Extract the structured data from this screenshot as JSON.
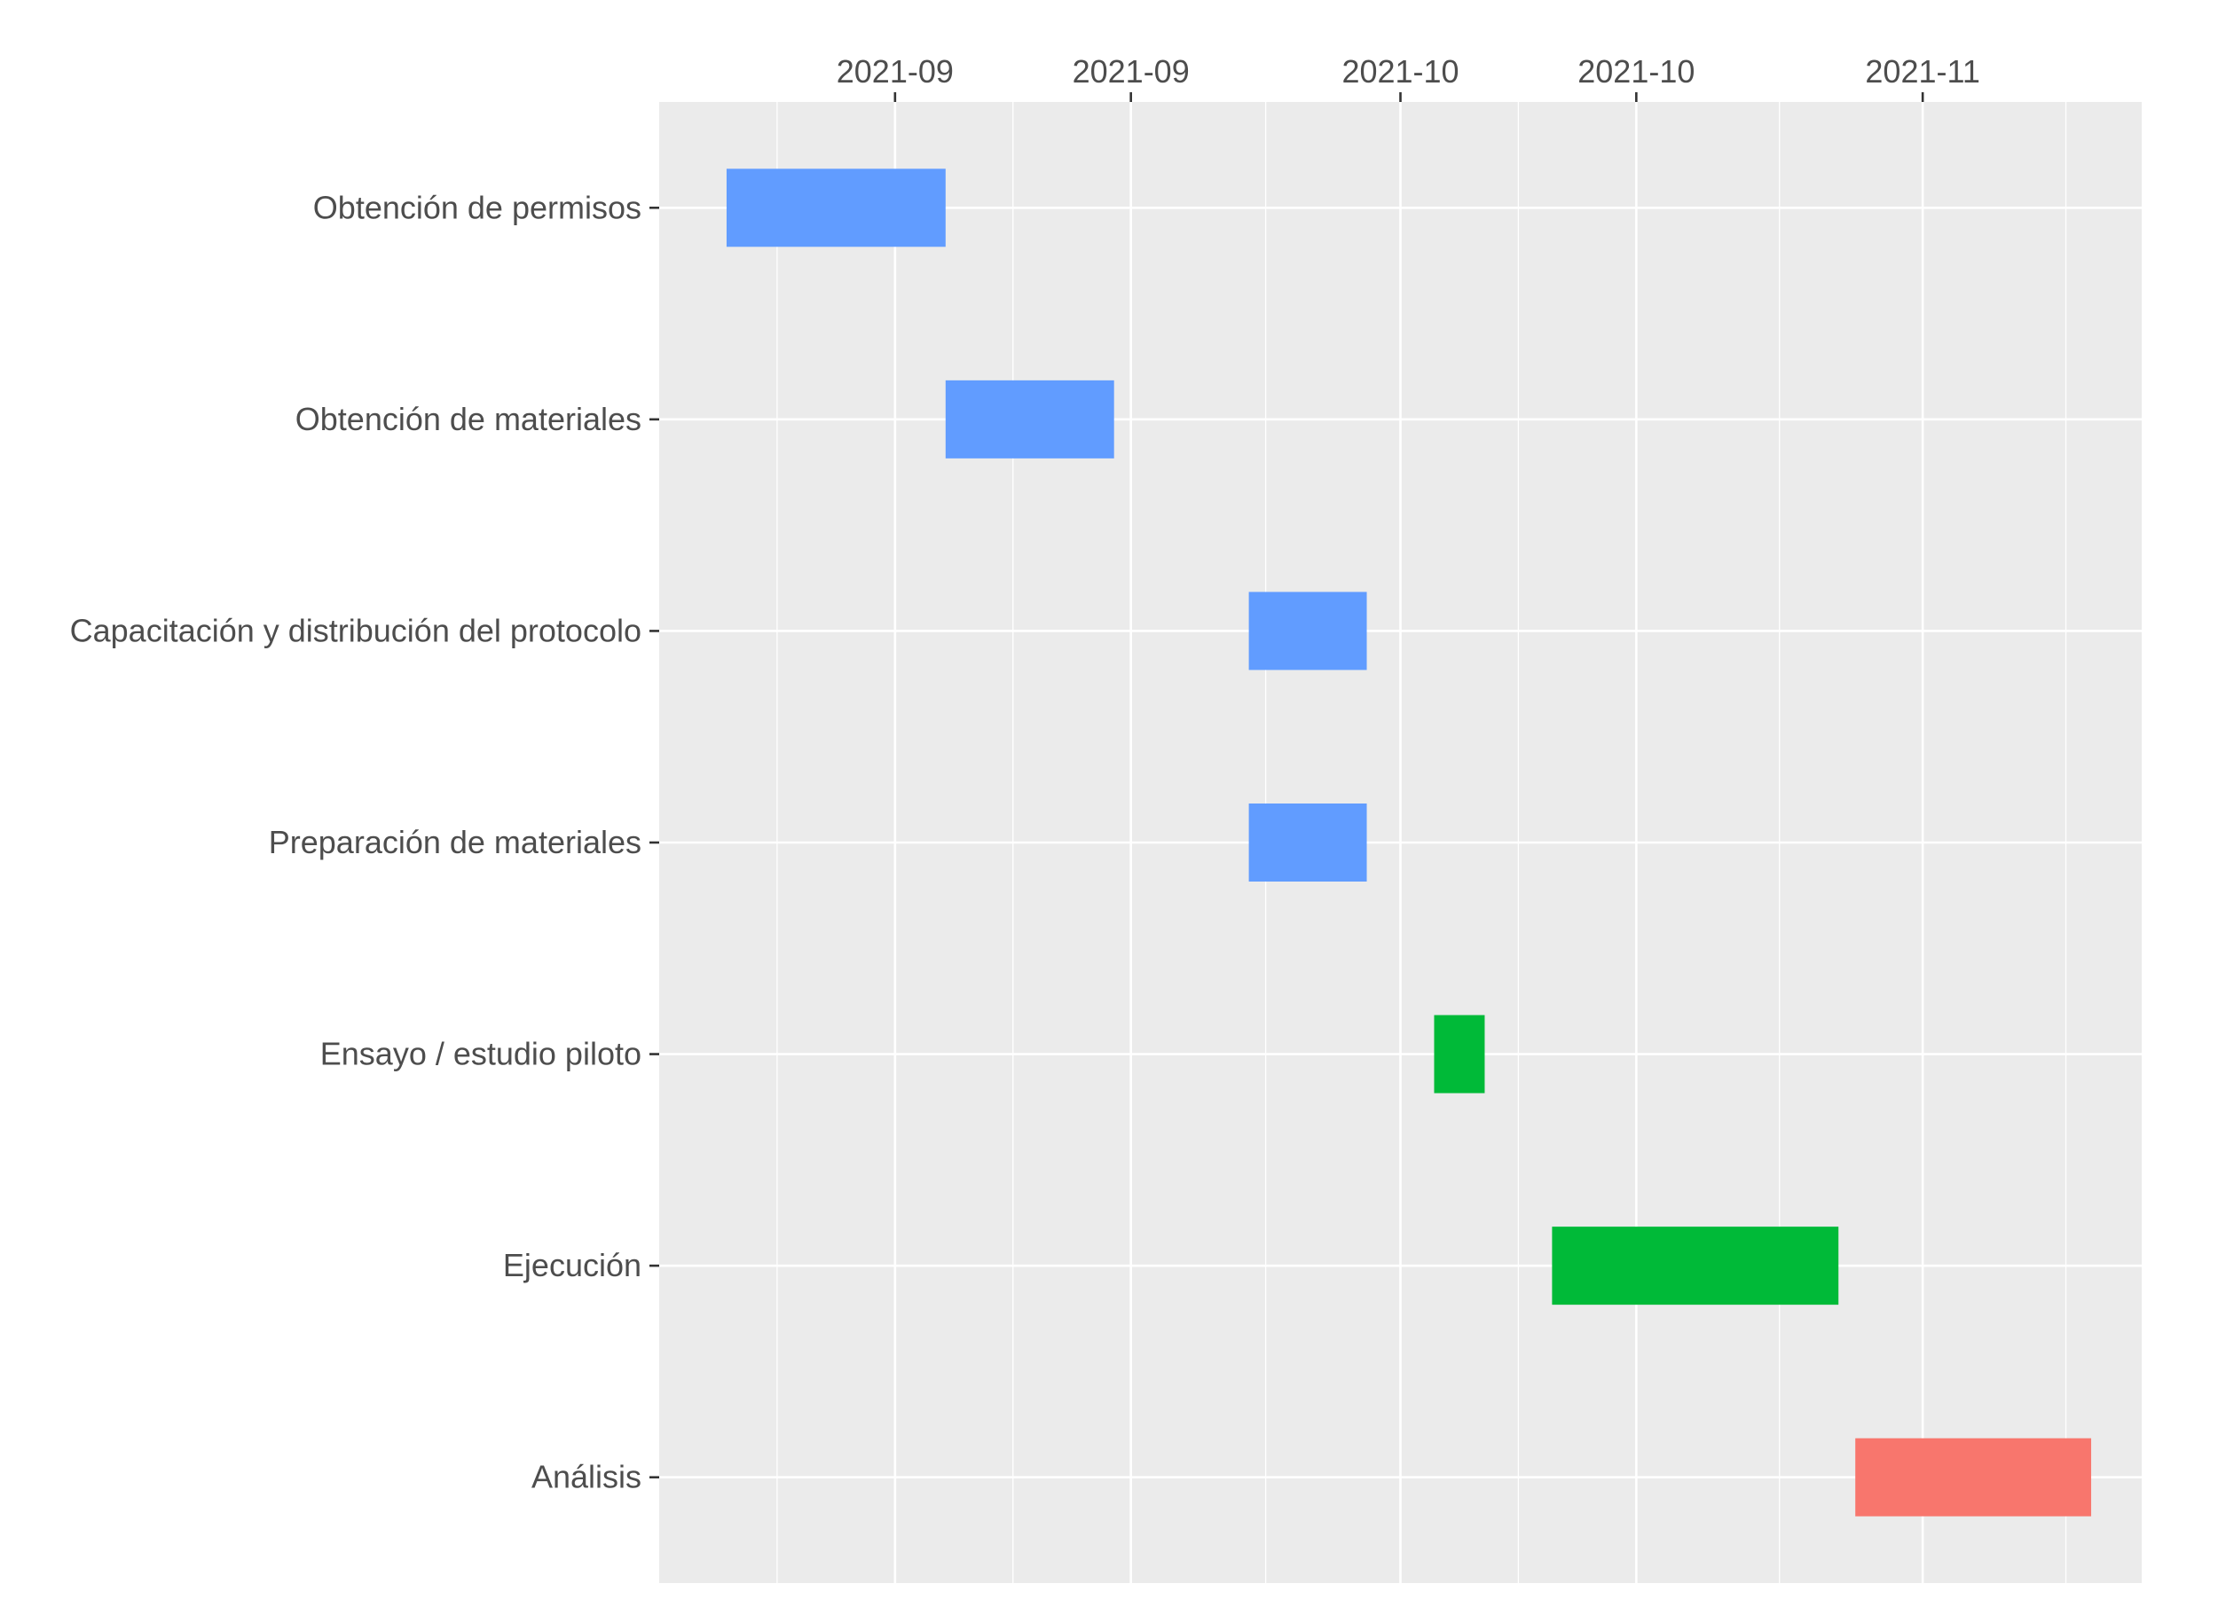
{
  "chart_data": {
    "type": "gantt",
    "title": "",
    "xlabel": "",
    "ylabel": "",
    "x_axis_position": "top",
    "x_tick_labels": [
      "2021-09",
      "2021-09",
      "2021-10",
      "2021-10",
      "2021-11"
    ],
    "x_tick_dates": [
      "2021-08-30",
      "2021-09-13",
      "2021-09-29",
      "2021-10-13",
      "2021-10-30"
    ],
    "xlim": [
      "2021-08-16",
      "2021-11-12"
    ],
    "grid": true,
    "legend": "none",
    "panel_color": "#ebebeb",
    "grid_color": "#ffffff",
    "colors": {
      "blue": "#619cff",
      "green": "#00ba38",
      "red": "#f8766d"
    },
    "tasks": [
      {
        "name": "Obtención de permisos",
        "start": "2021-08-20",
        "end": "2021-09-02",
        "color": "#619cff"
      },
      {
        "name": "Obtención de materiales",
        "start": "2021-09-02",
        "end": "2021-09-12",
        "color": "#619cff"
      },
      {
        "name": "Capacitación y distribución del protocolo",
        "start": "2021-09-20",
        "end": "2021-09-27",
        "color": "#619cff"
      },
      {
        "name": "Preparación de materiales",
        "start": "2021-09-20",
        "end": "2021-09-27",
        "color": "#619cff"
      },
      {
        "name": "Ensayo / estudio piloto",
        "start": "2021-10-01",
        "end": "2021-10-04",
        "color": "#00ba38"
      },
      {
        "name": "Ejecución",
        "start": "2021-10-08",
        "end": "2021-10-25",
        "color": "#00ba38"
      },
      {
        "name": "Análisis",
        "start": "2021-10-26",
        "end": "2021-11-09",
        "color": "#f8766d"
      }
    ]
  }
}
